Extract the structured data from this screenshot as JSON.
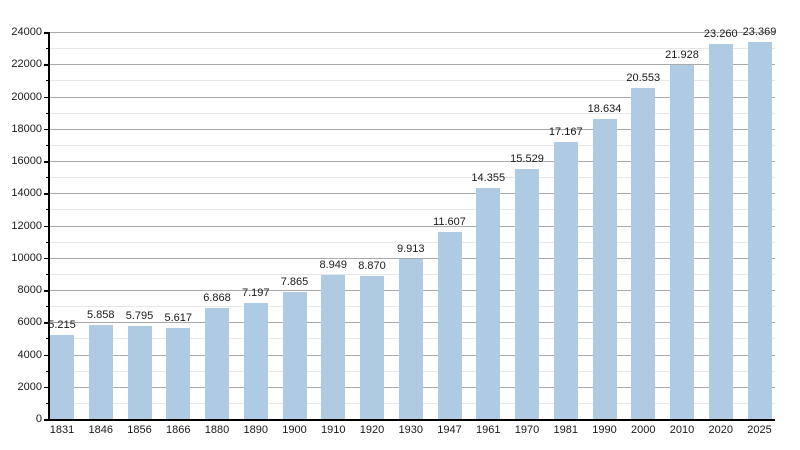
{
  "chart_data": {
    "type": "bar",
    "title": "",
    "xlabel": "",
    "ylabel": "",
    "categories": [
      "1831",
      "1846",
      "1856",
      "1866",
      "1880",
      "1890",
      "1900",
      "1910",
      "1920",
      "1930",
      "1947",
      "1961",
      "1970",
      "1981",
      "1990",
      "2000",
      "2010",
      "2020",
      "2025"
    ],
    "values": [
      5215,
      5858,
      5795,
      5617,
      6868,
      7197,
      7865,
      8949,
      8870,
      9913,
      11607,
      14355,
      15529,
      17167,
      18634,
      20553,
      21928,
      23260,
      23369
    ],
    "bar_labels": [
      "5.215",
      "5.858",
      "5.795",
      "5.617",
      "6.868",
      "7.197",
      "7.865",
      "8.949",
      "8.870",
      "9.913",
      "11.607",
      "14.355",
      "15.529",
      "17.167",
      "18.634",
      "20.553",
      "21.928",
      "23.260",
      "23.369"
    ],
    "ylim": [
      0,
      24000
    ],
    "ytick_step": 2000,
    "yminor_step": 1000,
    "ytick_labels": [
      "0",
      "2000",
      "4000",
      "6000",
      "8000",
      "10000",
      "12000",
      "14000",
      "16000",
      "18000",
      "20000",
      "22000",
      "24000"
    ],
    "grid": true,
    "legend": "none",
    "colors": {
      "bar_fill": "#aecbe3",
      "major_grid": "#a9a9a9",
      "minor_grid": "#e7e7e7",
      "axis": "#000000",
      "text": "#1a1a1a",
      "background": "#ffffff"
    }
  }
}
